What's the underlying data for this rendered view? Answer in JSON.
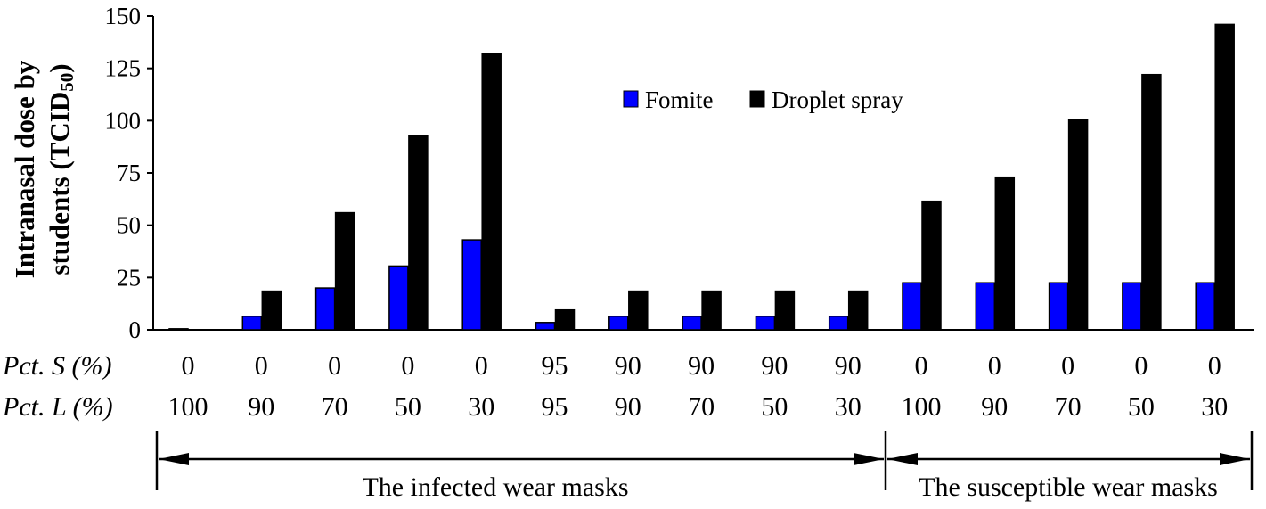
{
  "chart_data": {
    "type": "bar",
    "ylabel_line1": "Intranasal dose by",
    "ylabel_line2_prefix": "students (TCID",
    "ylabel_line2_sub": "50",
    "ylabel_line2_suffix": ")",
    "ylim": [
      0,
      150
    ],
    "yticks": [
      "0",
      "25",
      "50",
      "75",
      "100",
      "125",
      "150"
    ],
    "ytick_values": [
      0,
      25,
      50,
      75,
      100,
      125,
      150
    ],
    "legend_position": "top-center",
    "series": [
      {
        "name": "Fomite",
        "color": "#0000ff",
        "values": [
          0.5,
          6.5,
          20,
          30.5,
          43,
          3.5,
          6.5,
          6.5,
          6.5,
          6.5,
          22.5,
          22.5,
          22.5,
          22.5,
          22.5
        ]
      },
      {
        "name": "Droplet spray",
        "color": "#000000",
        "values": [
          0,
          18.5,
          56,
          93,
          132,
          9.5,
          18.5,
          18.5,
          18.5,
          18.5,
          61.5,
          73,
          100.5,
          122,
          146
        ]
      }
    ],
    "row_labels": {
      "pct_s": "Pct. S (%)",
      "pct_l": "Pct. L (%)"
    },
    "pct_s": [
      "0",
      "0",
      "0",
      "0",
      "0",
      "95",
      "90",
      "90",
      "90",
      "90",
      "0",
      "0",
      "0",
      "0",
      "0"
    ],
    "pct_l": [
      "100",
      "90",
      "70",
      "50",
      "30",
      "95",
      "90",
      "70",
      "50",
      "30",
      "100",
      "90",
      "70",
      "50",
      "30"
    ],
    "groups": [
      {
        "label": "The infected wear masks",
        "start": 0,
        "end": 9
      },
      {
        "label": "The susceptible wear masks",
        "start": 10,
        "end": 14
      }
    ]
  }
}
